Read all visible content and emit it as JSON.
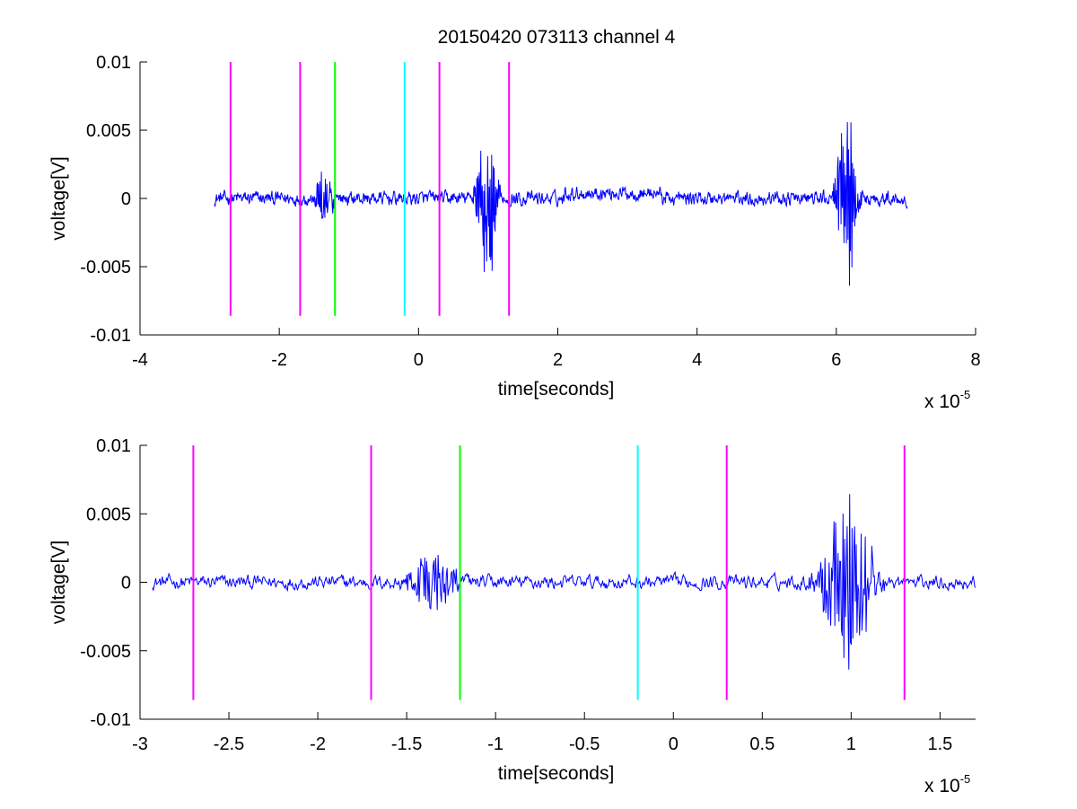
{
  "figure": {
    "title": "20150420 073113 channel 4",
    "background": "#ffffff"
  },
  "chart_data": [
    {
      "type": "line",
      "title": "20150420 073113 channel 4",
      "xlabel": "time[seconds]",
      "ylabel": "voltage[V]",
      "x_scale_label": "x 10",
      "x_scale_exponent": "-5",
      "xlim": [
        -4,
        8
      ],
      "ylim": [
        -0.01,
        0.01
      ],
      "x_ticks": [
        -4,
        -2,
        0,
        2,
        4,
        6,
        8
      ],
      "x_tick_labels": [
        "-4",
        "-2",
        "0",
        "2",
        "4",
        "6",
        "8"
      ],
      "y_ticks": [
        -0.01,
        -0.005,
        0,
        0.005,
        0.01
      ],
      "y_tick_labels": [
        "-0.01",
        "-0.005",
        "0",
        "0.005",
        "0.01"
      ],
      "grid": false,
      "signal": {
        "color": "#0000ff",
        "x_range": [
          -2.93,
          7.02
        ],
        "noise_amplitude": 0.0004,
        "bursts": [
          {
            "center": -1.35,
            "width": 0.12,
            "amplitude": 0.0028
          },
          {
            "center": 0.98,
            "width": 0.14,
            "amplitude": 0.0075
          },
          {
            "center": 6.15,
            "width": 0.14,
            "amplitude": 0.0085
          }
        ],
        "offsets": [
          {
            "from": 2.1,
            "to": 3.5,
            "value": 0.0004
          }
        ]
      },
      "markers": [
        {
          "x": -2.7,
          "y0": -0.0086,
          "y1": 0.01,
          "color": "#ff00ff"
        },
        {
          "x": -1.7,
          "y0": -0.0086,
          "y1": 0.01,
          "color": "#ff00ff"
        },
        {
          "x": -1.2,
          "y0": -0.0086,
          "y1": 0.01,
          "color": "#00ff00"
        },
        {
          "x": -0.2,
          "y0": -0.0086,
          "y1": 0.01,
          "color": "#00ffff"
        },
        {
          "x": 0.3,
          "y0": -0.0086,
          "y1": 0.01,
          "color": "#ff00ff"
        },
        {
          "x": 1.3,
          "y0": -0.0086,
          "y1": 0.01,
          "color": "#ff00ff"
        }
      ]
    },
    {
      "type": "line",
      "title": "",
      "xlabel": "time[seconds]",
      "ylabel": "voltage[V]",
      "x_scale_label": "x 10",
      "x_scale_exponent": "-5",
      "xlim": [
        -3.0,
        1.7
      ],
      "ylim": [
        -0.01,
        0.01
      ],
      "x_ticks": [
        -3,
        -2.5,
        -2,
        -1.5,
        -1,
        -0.5,
        0,
        0.5,
        1,
        1.5
      ],
      "x_tick_labels": [
        "-3",
        "-2.5",
        "-2",
        "-1.5",
        "-1",
        "-0.5",
        "0",
        "0.5",
        "1",
        "1.5"
      ],
      "y_ticks": [
        -0.01,
        -0.005,
        0,
        0.005,
        0.01
      ],
      "y_tick_labels": [
        "-0.01",
        "-0.005",
        "0",
        "0.005",
        "0.01"
      ],
      "grid": false,
      "signal": {
        "color": "#0000ff",
        "x_range": [
          -2.93,
          1.7
        ],
        "noise_amplitude": 0.0004,
        "bursts": [
          {
            "center": -1.35,
            "width": 0.12,
            "amplitude": 0.0028
          },
          {
            "center": 0.98,
            "width": 0.14,
            "amplitude": 0.0075
          }
        ],
        "offsets": []
      },
      "markers": [
        {
          "x": -2.7,
          "y0": -0.0086,
          "y1": 0.01,
          "color": "#ff00ff"
        },
        {
          "x": -1.7,
          "y0": -0.0086,
          "y1": 0.01,
          "color": "#ff00ff"
        },
        {
          "x": -1.2,
          "y0": -0.0086,
          "y1": 0.01,
          "color": "#00ff00"
        },
        {
          "x": -0.2,
          "y0": -0.0086,
          "y1": 0.01,
          "color": "#00ffff"
        },
        {
          "x": 0.3,
          "y0": -0.0086,
          "y1": 0.01,
          "color": "#ff00ff"
        },
        {
          "x": 1.3,
          "y0": -0.0086,
          "y1": 0.01,
          "color": "#ff00ff"
        }
      ]
    }
  ]
}
